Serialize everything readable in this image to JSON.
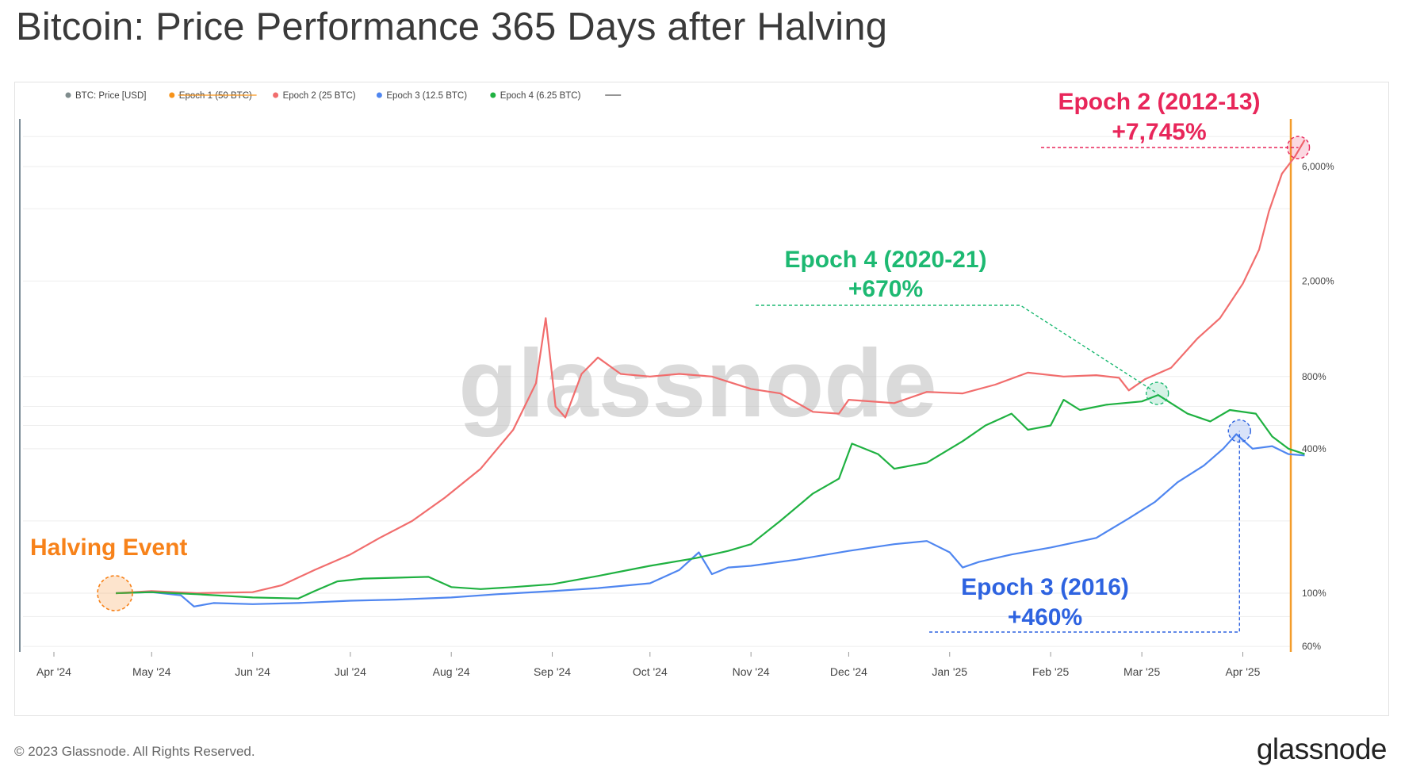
{
  "title": "Bitcoin: Price Performance 365 Days after Halving",
  "watermark": "glassnode",
  "footer": {
    "copyright": "© 2023 Glassnode. All Rights Reserved.",
    "logo": "glassnode"
  },
  "chart_data": {
    "type": "line",
    "title": "Bitcoin: Price Performance 365 Days after Halving",
    "y_scale": "log",
    "ylim_percent": [
      60,
      10000
    ],
    "y_ticks": [
      {
        "value": 6000,
        "label": "6,000%"
      },
      {
        "value": 2000,
        "label": "2,000%"
      },
      {
        "value": 800,
        "label": "800%"
      },
      {
        "value": 400,
        "label": "400%"
      },
      {
        "value": 100,
        "label": "100%"
      },
      {
        "value": 60,
        "label": "60%"
      }
    ],
    "x_range": [
      "2024-04-01",
      "2025-04-30"
    ],
    "x_ticks": [
      {
        "date": "2024-04-01",
        "label": "Apr '24"
      },
      {
        "date": "2024-05-01",
        "label": "May '24"
      },
      {
        "date": "2024-06-01",
        "label": "Jun '24"
      },
      {
        "date": "2024-07-01",
        "label": "Jul '24"
      },
      {
        "date": "2024-08-01",
        "label": "Aug '24"
      },
      {
        "date": "2024-09-01",
        "label": "Sep '24"
      },
      {
        "date": "2024-10-01",
        "label": "Oct '24"
      },
      {
        "date": "2024-11-01",
        "label": "Nov '24"
      },
      {
        "date": "2024-12-01",
        "label": "Dec '24"
      },
      {
        "date": "2025-01-01",
        "label": "Jan '25"
      },
      {
        "date": "2025-02-01",
        "label": "Feb '25"
      },
      {
        "date": "2025-03-01",
        "label": "Mar '25"
      },
      {
        "date": "2025-04-01",
        "label": "Apr '25"
      }
    ],
    "legend": {
      "placement": "top-left",
      "items": [
        {
          "label": "BTC: Price [USD]",
          "color": "#7f8c8d",
          "struck": false
        },
        {
          "label": "Epoch 1 (50 BTC)",
          "color": "#f7931a",
          "struck": true
        },
        {
          "label": "Epoch 2 (25 BTC)",
          "color": "#f16d6d",
          "struck": false
        },
        {
          "label": "Epoch 3 (12.5 BTC)",
          "color": "#4f86f0",
          "struck": false
        },
        {
          "label": "Epoch 4 (6.25 BTC)",
          "color": "#1fb141",
          "struck": false
        }
      ]
    },
    "series": [
      {
        "name": "Epoch 2 (25 BTC)",
        "color": "#f16d6d",
        "points": [
          [
            "2024-04-20",
            100
          ],
          [
            "2024-05-01",
            102
          ],
          [
            "2024-05-15",
            100
          ],
          [
            "2024-06-01",
            101
          ],
          [
            "2024-06-10",
            108
          ],
          [
            "2024-06-20",
            125
          ],
          [
            "2024-07-01",
            145
          ],
          [
            "2024-07-10",
            170
          ],
          [
            "2024-07-20",
            200
          ],
          [
            "2024-07-30",
            250
          ],
          [
            "2024-08-10",
            330
          ],
          [
            "2024-08-20",
            480
          ],
          [
            "2024-08-27",
            750
          ],
          [
            "2024-08-30",
            1400
          ],
          [
            "2024-09-02",
            600
          ],
          [
            "2024-09-05",
            540
          ],
          [
            "2024-09-10",
            820
          ],
          [
            "2024-09-15",
            960
          ],
          [
            "2024-09-22",
            820
          ],
          [
            "2024-10-01",
            800
          ],
          [
            "2024-10-10",
            820
          ],
          [
            "2024-10-20",
            800
          ],
          [
            "2024-11-01",
            710
          ],
          [
            "2024-11-10",
            680
          ],
          [
            "2024-11-20",
            570
          ],
          [
            "2024-11-28",
            560
          ],
          [
            "2024-12-01",
            640
          ],
          [
            "2024-12-15",
            620
          ],
          [
            "2024-12-25",
            690
          ],
          [
            "2025-01-05",
            680
          ],
          [
            "2025-01-15",
            740
          ],
          [
            "2025-01-25",
            830
          ],
          [
            "2025-02-05",
            800
          ],
          [
            "2025-02-15",
            810
          ],
          [
            "2025-02-22",
            790
          ],
          [
            "2025-02-25",
            700
          ],
          [
            "2025-03-02",
            780
          ],
          [
            "2025-03-10",
            870
          ],
          [
            "2025-03-18",
            1150
          ],
          [
            "2025-03-25",
            1400
          ],
          [
            "2025-04-01",
            1950
          ],
          [
            "2025-04-06",
            2700
          ],
          [
            "2025-04-09",
            3900
          ],
          [
            "2025-04-13",
            5600
          ],
          [
            "2025-04-17",
            6600
          ],
          [
            "2025-04-20",
            7745
          ]
        ]
      },
      {
        "name": "Epoch 3 (12.5 BTC)",
        "color": "#4f86f0",
        "points": [
          [
            "2024-04-20",
            100
          ],
          [
            "2024-05-01",
            101
          ],
          [
            "2024-05-10",
            98
          ],
          [
            "2024-05-14",
            88
          ],
          [
            "2024-05-20",
            91
          ],
          [
            "2024-06-01",
            90
          ],
          [
            "2024-06-15",
            91
          ],
          [
            "2024-07-01",
            93
          ],
          [
            "2024-07-15",
            94
          ],
          [
            "2024-08-01",
            96
          ],
          [
            "2024-08-15",
            99
          ],
          [
            "2024-09-01",
            102
          ],
          [
            "2024-09-15",
            105
          ],
          [
            "2024-10-01",
            110
          ],
          [
            "2024-10-10",
            125
          ],
          [
            "2024-10-16",
            148
          ],
          [
            "2024-10-20",
            120
          ],
          [
            "2024-10-25",
            128
          ],
          [
            "2024-11-01",
            130
          ],
          [
            "2024-11-15",
            138
          ],
          [
            "2024-12-01",
            150
          ],
          [
            "2024-12-15",
            160
          ],
          [
            "2024-12-25",
            165
          ],
          [
            "2025-01-01",
            148
          ],
          [
            "2025-01-05",
            128
          ],
          [
            "2025-01-10",
            135
          ],
          [
            "2025-01-20",
            145
          ],
          [
            "2025-02-01",
            155
          ],
          [
            "2025-02-15",
            170
          ],
          [
            "2025-02-25",
            205
          ],
          [
            "2025-03-05",
            240
          ],
          [
            "2025-03-12",
            290
          ],
          [
            "2025-03-20",
            340
          ],
          [
            "2025-03-26",
            400
          ],
          [
            "2025-03-30",
            460
          ],
          [
            "2025-04-04",
            400
          ],
          [
            "2025-04-10",
            410
          ],
          [
            "2025-04-15",
            380
          ],
          [
            "2025-04-20",
            375
          ]
        ]
      },
      {
        "name": "Epoch 4 (6.25 BTC)",
        "color": "#1fb141",
        "points": [
          [
            "2024-04-20",
            100
          ],
          [
            "2024-05-01",
            101
          ],
          [
            "2024-05-15",
            99
          ],
          [
            "2024-06-01",
            96
          ],
          [
            "2024-06-15",
            95
          ],
          [
            "2024-06-20",
            102
          ],
          [
            "2024-06-27",
            112
          ],
          [
            "2024-07-05",
            115
          ],
          [
            "2024-07-15",
            116
          ],
          [
            "2024-07-25",
            117
          ],
          [
            "2024-08-01",
            106
          ],
          [
            "2024-08-10",
            104
          ],
          [
            "2024-08-20",
            106
          ],
          [
            "2024-09-01",
            109
          ],
          [
            "2024-09-15",
            118
          ],
          [
            "2024-10-01",
            130
          ],
          [
            "2024-10-15",
            140
          ],
          [
            "2024-10-25",
            150
          ],
          [
            "2024-11-01",
            160
          ],
          [
            "2024-11-10",
            200
          ],
          [
            "2024-11-20",
            260
          ],
          [
            "2024-11-28",
            300
          ],
          [
            "2024-12-02",
            420
          ],
          [
            "2024-12-10",
            380
          ],
          [
            "2024-12-15",
            330
          ],
          [
            "2024-12-25",
            350
          ],
          [
            "2025-01-05",
            430
          ],
          [
            "2025-01-12",
            500
          ],
          [
            "2025-01-20",
            560
          ],
          [
            "2025-01-25",
            480
          ],
          [
            "2025-02-01",
            500
          ],
          [
            "2025-02-05",
            640
          ],
          [
            "2025-02-10",
            580
          ],
          [
            "2025-02-18",
            610
          ],
          [
            "2025-03-01",
            630
          ],
          [
            "2025-03-06",
            670
          ],
          [
            "2025-03-15",
            560
          ],
          [
            "2025-03-22",
            520
          ],
          [
            "2025-03-28",
            580
          ],
          [
            "2025-04-05",
            560
          ],
          [
            "2025-04-10",
            450
          ],
          [
            "2025-04-15",
            400
          ],
          [
            "2025-04-20",
            380
          ]
        ]
      }
    ],
    "annotations": [
      {
        "id": "halving",
        "text": "Halving Event",
        "color": "#f7821a",
        "date": "2024-04-20",
        "value": 100
      },
      {
        "id": "epoch2",
        "title": "Epoch 2 (2012-13)",
        "value_text": "+7,745%",
        "color": "#e8265a",
        "date": "2025-04-20",
        "value": 7745
      },
      {
        "id": "epoch4",
        "title": "Epoch 4 (2020-21)",
        "value_text": "+670%",
        "color": "#1db972",
        "date": "2025-03-06",
        "value": 670
      },
      {
        "id": "epoch3",
        "title": "Epoch 3 (2016)",
        "value_text": "+460%",
        "color": "#2e63e0",
        "date": "2025-03-30",
        "value": 460
      }
    ]
  }
}
